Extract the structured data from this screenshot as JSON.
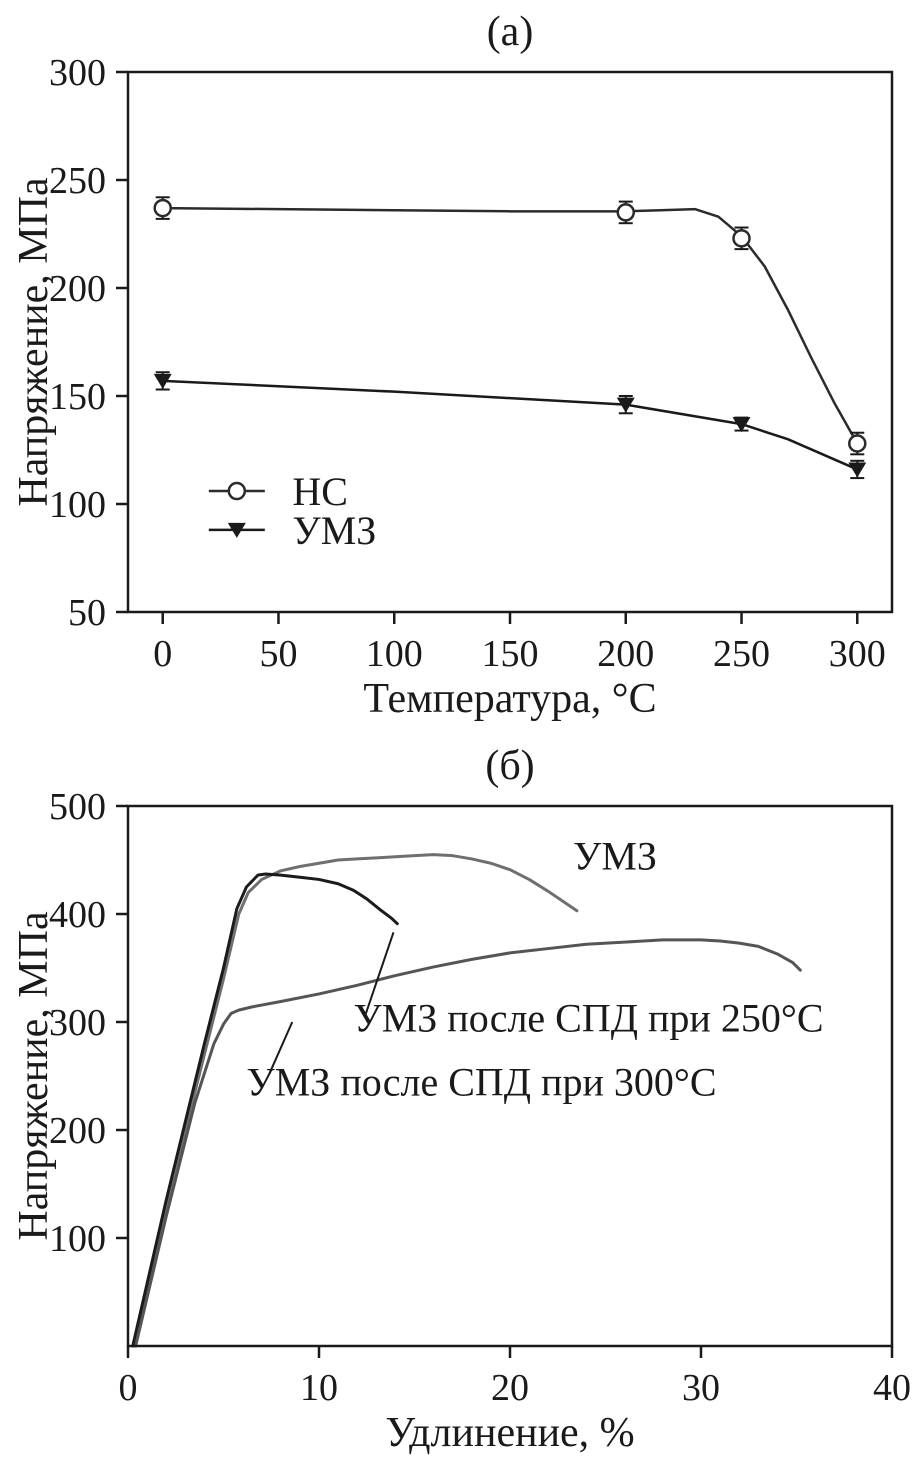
{
  "figure": {
    "background": "#ffffff",
    "ink_color": "#1a1a1a"
  },
  "chart_data": [
    {
      "type": "line",
      "panel_label": "(а)",
      "xlabel": "Температура, °C",
      "ylabel": "Напряжение, МПа",
      "xlim": [
        -15,
        315
      ],
      "ylim": [
        50,
        300
      ],
      "xticks": [
        0,
        50,
        100,
        150,
        200,
        250,
        300
      ],
      "yticks": [
        50,
        100,
        150,
        200,
        250,
        300
      ],
      "grid": false,
      "legend": {
        "marker_x": 32,
        "text_x": 56,
        "item_y": [
          106,
          88
        ]
      },
      "series": [
        {
          "name": "НС",
          "color": "#2b2b2b",
          "marker": "open-circle",
          "x": [
            0,
            200,
            250,
            300
          ],
          "y": [
            237,
            235,
            223,
            128
          ],
          "yerr": [
            5,
            5,
            5,
            5
          ],
          "line_x": [
            0,
            50,
            100,
            150,
            200,
            215,
            230,
            240,
            250,
            260,
            270,
            280,
            290,
            300
          ],
          "line_y": [
            237,
            236.5,
            236,
            235.5,
            235.5,
            236,
            236.5,
            233,
            224,
            210,
            190,
            168,
            147,
            128
          ]
        },
        {
          "name": "УМЗ",
          "color": "#1a1a1a",
          "marker": "filled-triangle-down",
          "x": [
            0,
            200,
            250,
            300
          ],
          "y": [
            157,
            146,
            137,
            116
          ],
          "yerr": [
            4,
            4,
            3,
            4
          ],
          "line_x": [
            0,
            50,
            100,
            150,
            200,
            250,
            270,
            285,
            300
          ],
          "line_y": [
            157,
            154.5,
            152,
            149,
            146,
            137,
            130,
            123,
            116
          ]
        }
      ]
    },
    {
      "type": "line",
      "panel_label": "(б)",
      "xlabel": "Удлинение, %",
      "ylabel": "Напряжение, МПа",
      "xlim": [
        0,
        40
      ],
      "ylim": [
        0,
        500
      ],
      "xticks": [
        0,
        10,
        20,
        30,
        40
      ],
      "yticks": [
        100,
        200,
        300,
        400,
        500
      ],
      "grid": false,
      "series": [
        {
          "name": "УМЗ",
          "color": "#6f6f6f",
          "line_x": [
            0.3,
            2,
            4,
            5,
            5.8,
            6.3,
            7,
            8,
            9,
            10,
            11,
            12,
            13,
            14,
            15,
            16,
            17,
            18,
            19,
            20,
            21,
            22,
            23,
            23.5
          ],
          "line_y": [
            0,
            130,
            270,
            340,
            400,
            420,
            432,
            440,
            444,
            447,
            450,
            451,
            452,
            453,
            454,
            455,
            454,
            451,
            447,
            441,
            432,
            421,
            409,
            403
          ]
        },
        {
          "name": "УМЗ после СПД при 250°C",
          "color": "#1b1b1b",
          "line_x": [
            0.25,
            2,
            4,
            5,
            5.7,
            6.2,
            6.8,
            7.2,
            8,
            9,
            10,
            11,
            11.8,
            12.5,
            13.2,
            13.8,
            14.1
          ],
          "line_y": [
            0,
            135,
            280,
            350,
            405,
            425,
            436,
            437,
            436,
            434,
            432,
            428,
            422,
            414,
            404,
            396,
            391
          ]
        },
        {
          "name": "УМЗ после СПД при 300°C",
          "color": "#555555",
          "line_x": [
            0.4,
            2,
            3.5,
            4.5,
            5,
            5.4,
            5.8,
            6.5,
            8,
            10,
            12,
            14,
            16,
            18,
            20,
            22,
            24,
            26,
            28,
            30,
            31,
            32,
            33,
            34,
            34.8,
            35.2
          ],
          "line_y": [
            0,
            120,
            225,
            280,
            298,
            308,
            311,
            314,
            319,
            326,
            334,
            343,
            351,
            358,
            364,
            368,
            372,
            374,
            376,
            376,
            375,
            373,
            370,
            363,
            355,
            348
          ]
        }
      ],
      "annotations": [
        {
          "text": "УМЗ",
          "x": 23.3,
          "y": 441
        },
        {
          "text": "УМЗ после СПД при 250°C",
          "x": 11.8,
          "y": 291
        },
        {
          "text": "УМЗ после СПД при 300°C",
          "x": 6.2,
          "y": 232
        }
      ],
      "leaders": [
        {
          "x1": 12.4,
          "y1": 305,
          "x2": 13.9,
          "y2": 383
        },
        {
          "x1": 7.4,
          "y1": 252,
          "x2": 8.6,
          "y2": 300
        }
      ]
    }
  ]
}
